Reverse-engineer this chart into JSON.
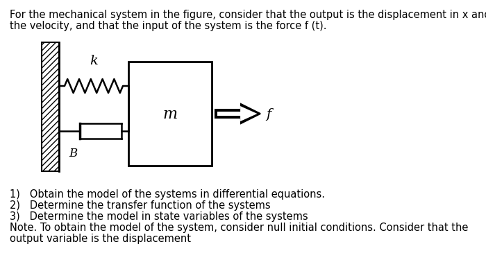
{
  "bg_color": "#ffffff",
  "header_line1": "For the mechanical system in the figure, consider that the output is the displacement in x and",
  "header_line2": "the velocity, and that the input of the system is the force f (t).",
  "item1": "1)   Obtain the model of the systems in differential equations.",
  "item2": "2)   Determine the transfer function of the systems",
  "item3": "3)   Determine the model in state variables of the systems",
  "note_line1": "Note. To obtain the model of the system, consider null initial conditions. Consider that the",
  "note_line2": "output variable is the displacement",
  "label_k": "k",
  "label_m": "m",
  "label_f": "f",
  "label_B": "B",
  "font_size_text": 10.5,
  "font_size_diagram_label": 13
}
